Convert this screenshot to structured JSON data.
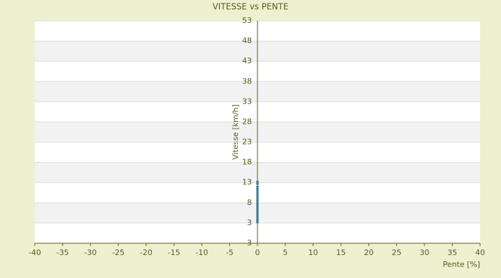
{
  "chart_data": {
    "type": "scatter",
    "title": "VITESSE vs PENTE",
    "x_label": "Pente [%]",
    "y_label": "Vitesse [km/h]",
    "x": [
      0,
      0,
      0,
      0,
      0,
      0,
      0,
      0,
      0,
      0,
      0,
      0,
      0,
      0,
      0,
      0,
      0,
      0,
      0,
      0,
      0
    ],
    "values": [
      3.2,
      3.6,
      4,
      4.5,
      5,
      5.5,
      6,
      6.5,
      7,
      7.5,
      8,
      8.5,
      9,
      9.5,
      10,
      10.5,
      11,
      11.5,
      12,
      12.7,
      13.2
    ],
    "color": "#3f7f96",
    "xlim": [
      -40,
      40
    ],
    "xticks": [
      -40,
      -35,
      -30,
      -25,
      -20,
      -15,
      -10,
      -5,
      0,
      5,
      10,
      15,
      20,
      25,
      30,
      35,
      40
    ],
    "ylim": [
      -2,
      53
    ],
    "yticks": [
      3,
      8,
      13,
      18,
      23,
      28,
      33,
      38,
      43,
      48,
      53
    ],
    "y_axis_bottom_label": "3",
    "grid": "bands"
  }
}
